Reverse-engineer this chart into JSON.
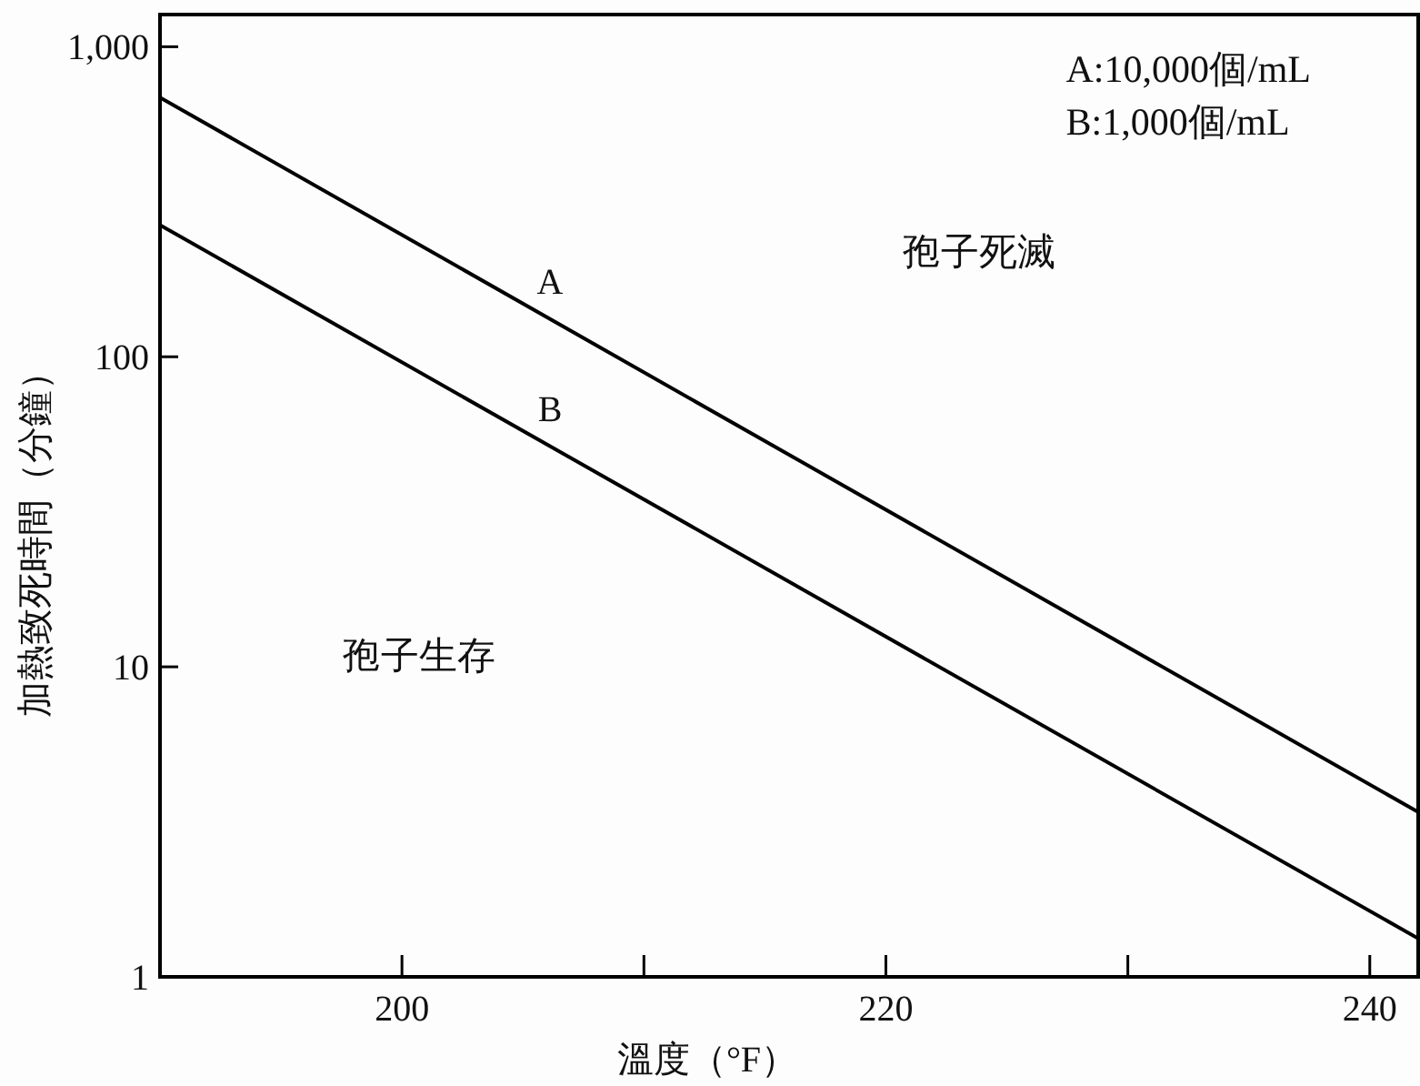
{
  "chart_data": {
    "type": "line",
    "xlabel": "溫度（°F）",
    "ylabel": "加熱致死時間（分鐘）",
    "x": [
      190,
      242
    ],
    "series": [
      {
        "name": "A",
        "color": "#000000",
        "values": [
          686,
          3.4
        ]
      },
      {
        "name": "B",
        "color": "#000000",
        "values": [
          266,
          1.33
        ]
      }
    ],
    "xlim": [
      190,
      242
    ],
    "ylim": [
      1,
      1270
    ],
    "log": "y",
    "xticks": [
      200,
      {
        "value": 210,
        "label": null
      },
      220,
      {
        "value": 230,
        "label": null
      },
      240
    ],
    "yticks": [
      1,
      10,
      100,
      {
        "value": 1000,
        "label": "1,000"
      }
    ],
    "annotations": [
      "A:10,000個/mL",
      "B:1,000個/mL",
      "孢子死滅",
      "孢子生存"
    ]
  }
}
